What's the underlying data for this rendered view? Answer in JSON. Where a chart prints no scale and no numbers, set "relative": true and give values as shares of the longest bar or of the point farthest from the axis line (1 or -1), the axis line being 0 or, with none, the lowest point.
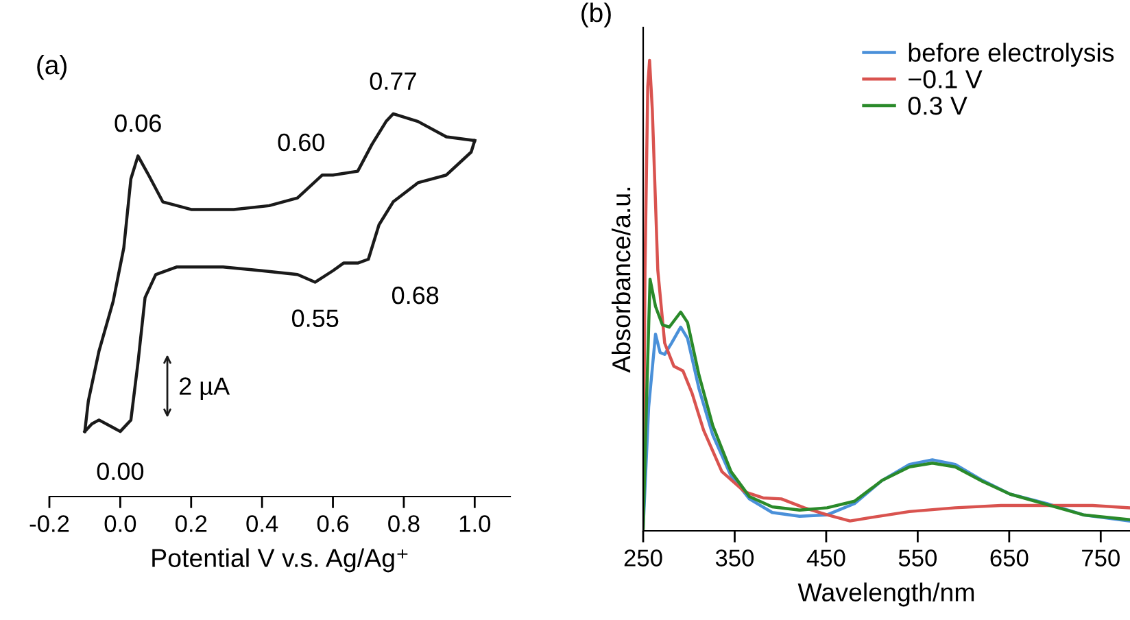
{
  "chart_data": [
    {
      "type": "line",
      "title": "(a)",
      "xlabel": "Potential V v.s. Ag/Ag⁺",
      "relative": true,
      "tick_labels": "x",
      "xlim": [
        -0.2,
        1.1
      ],
      "xticks": [
        {
          "value": -0.2,
          "label": "-0.2"
        },
        {
          "value": 0.0,
          "label": "0.0"
        },
        {
          "value": 0.2,
          "label": "0.2"
        },
        {
          "value": 0.4,
          "label": "0.4"
        },
        {
          "value": 0.6,
          "label": "0.6"
        },
        {
          "value": 0.8,
          "label": "0.8"
        },
        {
          "value": 1.0,
          "label": "1.0"
        }
      ],
      "grid": false,
      "legend": false,
      "series": [
        {
          "color": "#1a1a1a",
          "x": [
            -0.1,
            -0.09,
            -0.06,
            -0.02,
            0.01,
            0.03,
            0.05,
            0.08,
            0.12,
            0.2,
            0.32,
            0.42,
            0.5,
            0.57,
            0.6,
            0.67,
            0.71,
            0.75,
            0.77,
            0.84,
            0.92,
            1.0
          ],
          "values": [
            0.17,
            0.25,
            0.38,
            0.51,
            0.65,
            0.83,
            0.89,
            0.84,
            0.77,
            0.75,
            0.75,
            0.76,
            0.78,
            0.84,
            0.84,
            0.85,
            0.92,
            0.98,
            1.0,
            0.98,
            0.94,
            0.93
          ]
        },
        {
          "color": "#1a1a1a",
          "x": [
            1.0,
            0.99,
            0.92,
            0.84,
            0.77,
            0.73,
            0.7,
            0.67,
            0.63,
            0.6,
            0.55,
            0.5,
            0.4,
            0.29,
            0.16,
            0.1,
            0.07,
            0.05,
            0.03,
            0.0,
            -0.02,
            -0.06,
            -0.08,
            -0.1
          ],
          "values": [
            0.93,
            0.9,
            0.84,
            0.82,
            0.77,
            0.71,
            0.62,
            0.61,
            0.61,
            0.59,
            0.56,
            0.58,
            0.59,
            0.6,
            0.6,
            0.58,
            0.52,
            0.35,
            0.2,
            0.17,
            0.18,
            0.2,
            0.19,
            0.17
          ]
        }
      ],
      "annotations": [
        {
          "text": "0.06",
          "x": 0.05,
          "y": 0.89
        },
        {
          "text": "0.77",
          "x": 0.77,
          "y": 1.0
        },
        {
          "text": "0.60",
          "x": 0.6,
          "y": 0.84
        },
        {
          "text": "0.55",
          "x": 0.55,
          "y": 0.56
        },
        {
          "text": "0.68",
          "x": 0.7,
          "y": 0.62
        },
        {
          "text": "0.00",
          "x": 0.0,
          "y": 0.17
        },
        "2 µA"
      ]
    },
    {
      "type": "line",
      "title": "(b)",
      "xlabel": "Wavelength/nm",
      "ylabel": "Absorbance/a.u.",
      "relative": true,
      "tick_labels": "x",
      "xlim": [
        250,
        782
      ],
      "xticks": [
        250,
        350,
        450,
        550,
        650,
        750
      ],
      "grid": false,
      "legend": "top right",
      "series": [
        {
          "name": "before electrolysis",
          "color": "#4a90d9",
          "x": [
            250,
            256,
            263.5,
            268.5,
            273.5,
            281,
            291,
            298.5,
            311,
            326,
            346,
            366,
            391,
            421,
            451,
            481,
            511,
            541,
            566,
            591,
            621,
            651,
            691,
            731,
            781
          ],
          "values": [
            0.005,
            0.263,
            0.418,
            0.379,
            0.375,
            0.399,
            0.433,
            0.409,
            0.302,
            0.204,
            0.117,
            0.068,
            0.039,
            0.031,
            0.034,
            0.058,
            0.107,
            0.141,
            0.151,
            0.141,
            0.107,
            0.078,
            0.058,
            0.034,
            0.021
          ]
        },
        {
          "name": "−0.1 V",
          "color": "#d9534f",
          "x": [
            250,
            252,
            255,
            257,
            260,
            266,
            273.5,
            283.5,
            293.5,
            303.5,
            316,
            336,
            361,
            381,
            401,
            426,
            451,
            476,
            501,
            541,
            591,
            641,
            691,
            741,
            781
          ],
          "values": [
            0.005,
            0.554,
            0.944,
            1.0,
            0.895,
            0.554,
            0.399,
            0.35,
            0.34,
            0.292,
            0.214,
            0.126,
            0.083,
            0.07,
            0.068,
            0.049,
            0.034,
            0.021,
            0.029,
            0.041,
            0.049,
            0.054,
            0.054,
            0.054,
            0.049
          ]
        },
        {
          "name": "0.3 V",
          "color": "#2a8a2a",
          "x": [
            250,
            253.5,
            257.5,
            263.5,
            271,
            278.5,
            291,
            298.5,
            311,
            326,
            346,
            366,
            391,
            421,
            451,
            481,
            511,
            541,
            566,
            591,
            621,
            651,
            691,
            731,
            781
          ],
          "values": [
            0.005,
            0.263,
            0.535,
            0.477,
            0.438,
            0.433,
            0.465,
            0.443,
            0.331,
            0.224,
            0.126,
            0.073,
            0.051,
            0.044,
            0.049,
            0.063,
            0.107,
            0.136,
            0.144,
            0.136,
            0.105,
            0.078,
            0.056,
            0.034,
            0.024
          ]
        }
      ]
    }
  ]
}
